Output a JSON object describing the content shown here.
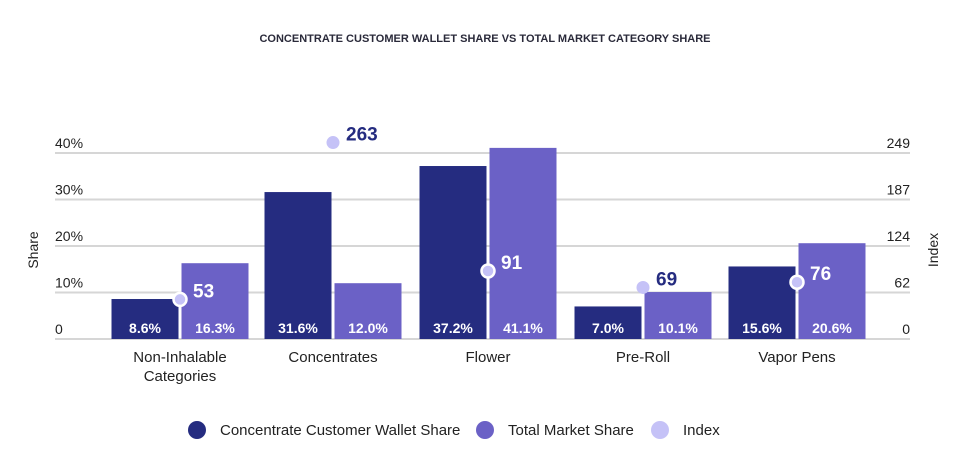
{
  "chart_data": {
    "type": "bar",
    "title": "CONCENTRATE CUSTOMER WALLET SHARE VS TOTAL MARKET CATEGORY SHARE",
    "categories": [
      [
        "Non-Inhalable",
        "Categories"
      ],
      [
        "Concentrates"
      ],
      [
        "Flower"
      ],
      [
        "Pre-Roll"
      ],
      [
        "Vapor Pens"
      ]
    ],
    "series": [
      {
        "name": "Concentrate Customer Wallet Share",
        "type": "bar",
        "axis": "left",
        "color": "#252C80",
        "values": [
          8.6,
          31.6,
          37.2,
          7.0,
          15.6
        ],
        "labels": [
          "8.6%",
          "31.6%",
          "37.2%",
          "7.0%",
          "15.6%"
        ]
      },
      {
        "name": "Total Market Share",
        "type": "bar",
        "axis": "left",
        "color": "#6B61C6",
        "values": [
          16.3,
          12.0,
          41.1,
          10.1,
          20.6
        ],
        "labels": [
          "16.3%",
          "12.0%",
          "41.1%",
          "10.1%",
          "20.6%"
        ]
      },
      {
        "name": "Index",
        "type": "scatter",
        "axis": "right",
        "color": "#C5C2F7",
        "values": [
          53,
          263,
          91,
          69,
          76
        ],
        "labels": [
          "53",
          "263",
          "91",
          "69",
          "76"
        ]
      }
    ],
    "ylabel": "Share",
    "y2label": "Index",
    "ylim": [
      0,
      40
    ],
    "y2lim": [
      0,
      249
    ],
    "yticks": [
      "0",
      "10%",
      "20%",
      "30%",
      "40%"
    ],
    "y2ticks": [
      "0",
      "62",
      "124",
      "187",
      "249"
    ],
    "grid": true,
    "legend": "bottom"
  }
}
